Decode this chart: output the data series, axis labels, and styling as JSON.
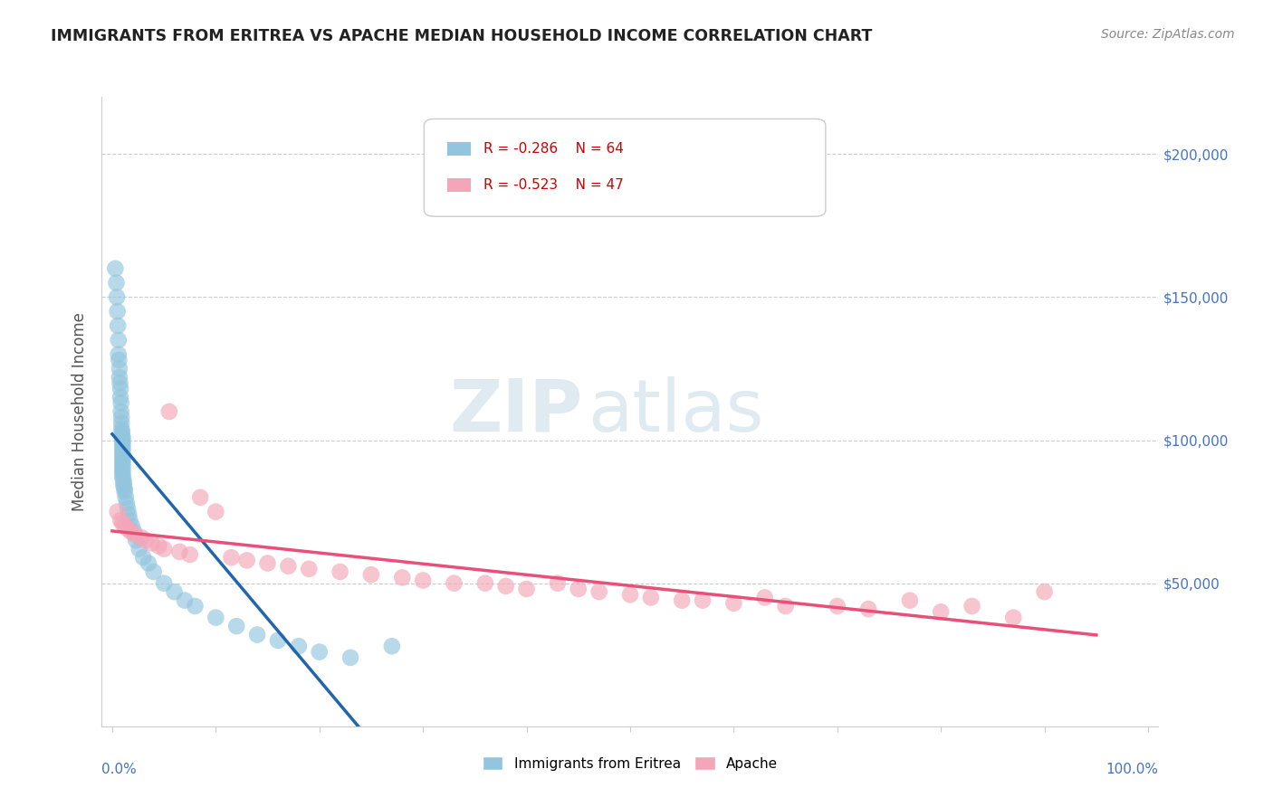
{
  "title": "IMMIGRANTS FROM ERITREA VS APACHE MEDIAN HOUSEHOLD INCOME CORRELATION CHART",
  "source": "Source: ZipAtlas.com",
  "ylabel": "Median Household Income",
  "legend1_R": "R = -0.286",
  "legend1_N": "N = 64",
  "legend2_R": "R = -0.523",
  "legend2_N": "N = 47",
  "legend1_label": "Immigrants from Eritrea",
  "legend2_label": "Apache",
  "blue_color": "#92c5de",
  "pink_color": "#f4a6b8",
  "blue_line_color": "#2166ac",
  "pink_line_color": "#e8507a",
  "dash_color": "#bbbbbb",
  "background_color": "#ffffff",
  "watermark_zip": "ZIP",
  "watermark_atlas": "atlas",
  "blue_x": [
    0.3,
    0.4,
    0.45,
    0.5,
    0.55,
    0.6,
    0.6,
    0.65,
    0.7,
    0.7,
    0.75,
    0.8,
    0.8,
    0.85,
    0.85,
    0.9,
    0.9,
    0.9,
    0.95,
    0.95,
    1.0,
    1.0,
    1.0,
    1.0,
    1.0,
    1.0,
    1.0,
    1.0,
    1.0,
    1.0,
    1.0,
    1.0,
    1.0,
    1.0,
    1.0,
    1.1,
    1.1,
    1.1,
    1.2,
    1.2,
    1.3,
    1.4,
    1.5,
    1.6,
    1.7,
    1.9,
    2.1,
    2.3,
    2.6,
    3.0,
    3.5,
    4.0,
    5.0,
    6.0,
    7.0,
    8.0,
    10.0,
    12.0,
    14.0,
    16.0,
    18.0,
    20.0,
    23.0,
    27.0
  ],
  "blue_y": [
    160000,
    155000,
    150000,
    145000,
    140000,
    135000,
    130000,
    128000,
    125000,
    122000,
    120000,
    118000,
    115000,
    113000,
    110000,
    108000,
    106000,
    104000,
    103000,
    102000,
    101000,
    100000,
    99000,
    98000,
    97000,
    96000,
    95000,
    94000,
    93000,
    92000,
    91000,
    90000,
    89000,
    88000,
    87000,
    86000,
    85000,
    84000,
    83000,
    82000,
    80000,
    78000,
    76000,
    74000,
    72000,
    70000,
    68000,
    65000,
    62000,
    59000,
    57000,
    54000,
    50000,
    47000,
    44000,
    42000,
    38000,
    35000,
    32000,
    30000,
    28000,
    26000,
    24000,
    28000
  ],
  "pink_x": [
    0.5,
    0.8,
    1.0,
    1.2,
    1.5,
    1.8,
    2.2,
    2.8,
    3.2,
    3.8,
    4.5,
    5.0,
    5.5,
    6.5,
    7.5,
    8.5,
    10.0,
    11.5,
    13.0,
    15.0,
    17.0,
    19.0,
    22.0,
    25.0,
    28.0,
    30.0,
    33.0,
    36.0,
    38.0,
    40.0,
    43.0,
    45.0,
    47.0,
    50.0,
    52.0,
    55.0,
    57.0,
    60.0,
    63.0,
    65.0,
    70.0,
    73.0,
    77.0,
    80.0,
    83.0,
    87.0,
    90.0
  ],
  "pink_y": [
    75000,
    72000,
    71000,
    70000,
    69000,
    68000,
    67000,
    66000,
    65000,
    64000,
    63000,
    62000,
    110000,
    61000,
    60000,
    80000,
    75000,
    59000,
    58000,
    57000,
    56000,
    55000,
    54000,
    53000,
    52000,
    51000,
    50000,
    50000,
    49000,
    48000,
    50000,
    48000,
    47000,
    46000,
    45000,
    44000,
    44000,
    43000,
    45000,
    42000,
    42000,
    41000,
    44000,
    40000,
    42000,
    38000,
    47000
  ],
  "ylim": [
    0,
    220000
  ],
  "xlim": [
    -1,
    101
  ],
  "blue_line_xmax": 28,
  "dash_xmax": 70
}
